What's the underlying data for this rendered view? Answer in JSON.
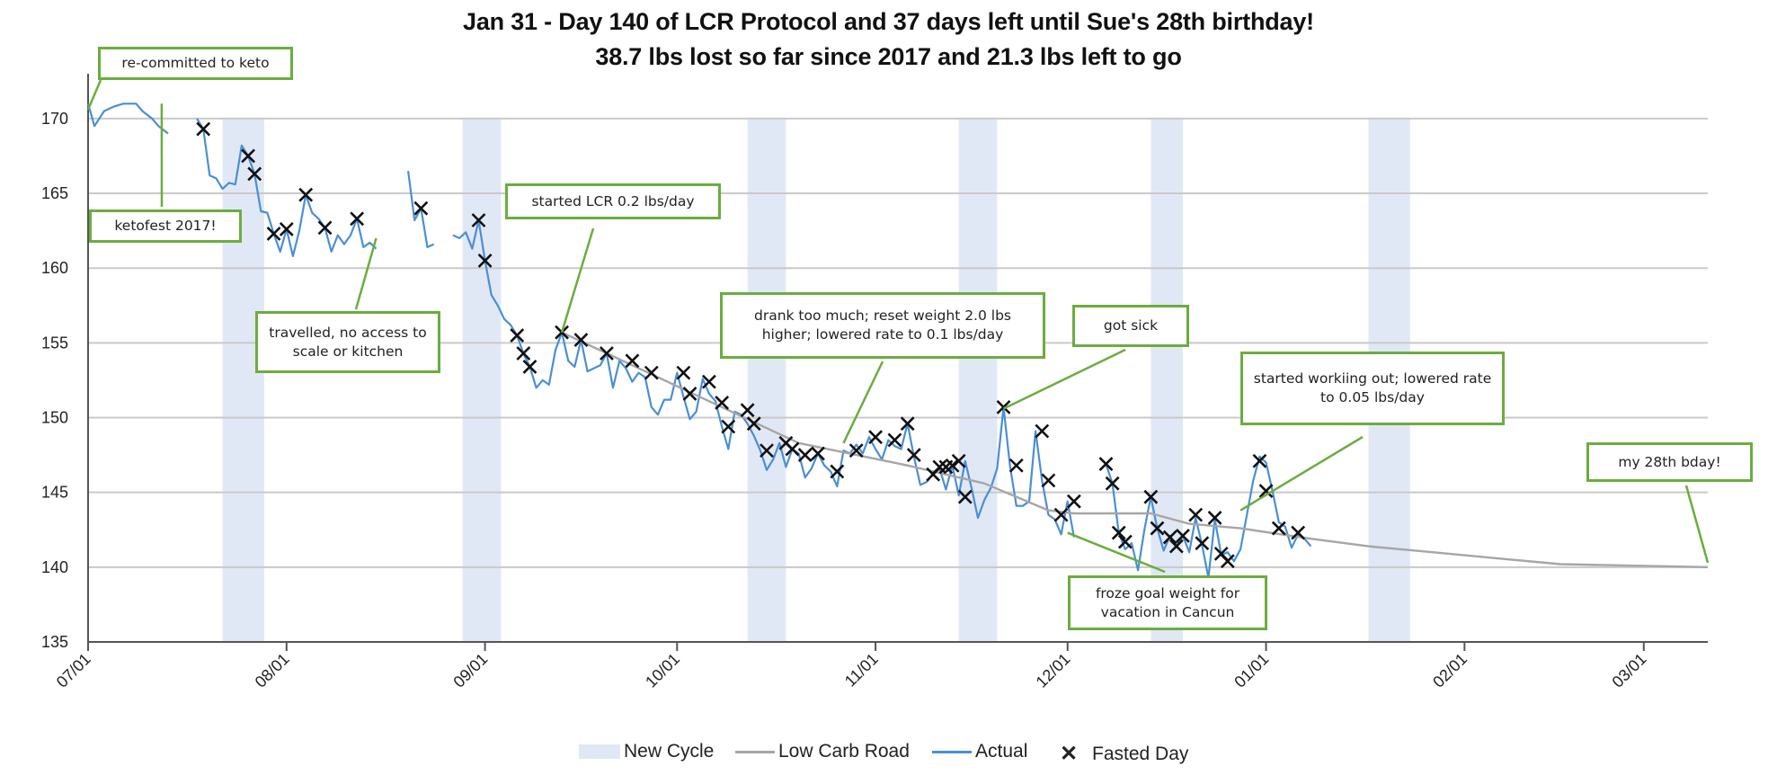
{
  "chart_data": {
    "type": "line",
    "title": "Jan 31 - Day 140 of LCR Protocol and 37 days left until Sue's 28th birthday!",
    "subtitle": "38.7 lbs lost so far since 2017 and 21.3 lbs left to go",
    "xlabel": "",
    "ylabel": "",
    "ylim": [
      135,
      173
    ],
    "y_ticks": [
      135,
      140,
      145,
      150,
      155,
      160,
      165,
      170
    ],
    "x_ticks": [
      "07/01",
      "08/01",
      "09/01",
      "10/01",
      "11/01",
      "12/01",
      "01/01",
      "02/01",
      "03/01"
    ],
    "x_tick_days": [
      0,
      31,
      62,
      92,
      123,
      153,
      184,
      215,
      243
    ],
    "x_range_days": [
      0,
      253
    ],
    "grid": "horizontal",
    "legend_position": "bottom",
    "new_cycle_bands": [
      [
        21,
        27.5
      ],
      [
        58.5,
        64.5
      ],
      [
        103,
        109
      ],
      [
        136,
        142
      ],
      [
        166,
        171
      ],
      [
        200,
        206.5
      ]
    ],
    "series": [
      {
        "name": "Actual",
        "color": "#4a8fd4",
        "segments": [
          [
            [
              0,
              171
            ],
            [
              1,
              169.5
            ],
            [
              2.5,
              170.5
            ],
            [
              4,
              170.8
            ],
            [
              5.5,
              171
            ],
            [
              7.5,
              171
            ],
            [
              8.5,
              170.5
            ],
            [
              10,
              170
            ],
            [
              11,
              169.5
            ],
            [
              12.5,
              169
            ]
          ],
          [
            [
              17,
              170
            ],
            [
              18,
              169.3
            ],
            [
              19,
              166.2
            ],
            [
              20,
              166
            ],
            [
              21,
              165.3
            ],
            [
              22,
              165.7
            ],
            [
              23,
              165.6
            ],
            [
              24,
              168.2
            ],
            [
              25,
              167.5
            ],
            [
              26,
              166.3
            ],
            [
              27,
              163.8
            ],
            [
              28,
              163.7
            ],
            [
              29,
              162.3
            ],
            [
              30,
              161.1
            ],
            [
              31,
              162.6
            ],
            [
              32,
              160.8
            ],
            [
              33,
              162.5
            ],
            [
              34,
              164.9
            ],
            [
              35,
              163.7
            ],
            [
              36,
              163.3
            ],
            [
              37,
              162.7
            ],
            [
              38,
              161.1
            ],
            [
              39,
              162.2
            ],
            [
              40,
              161.6
            ],
            [
              41,
              162.2
            ],
            [
              42,
              163.3
            ],
            [
              43,
              161.4
            ],
            [
              44,
              161.7
            ],
            [
              45,
              161.3
            ]
          ],
          [
            [
              50,
              166.5
            ],
            [
              51,
              163.2
            ],
            [
              52,
              164
            ],
            [
              53,
              161.4
            ],
            [
              54,
              161.6
            ]
          ],
          [
            [
              57,
              162.2
            ],
            [
              58,
              162
            ],
            [
              59,
              162.4
            ],
            [
              60,
              161.3
            ],
            [
              61,
              163.2
            ],
            [
              62,
              160.5
            ],
            [
              63,
              158.2
            ],
            [
              64,
              157.5
            ],
            [
              65,
              156.6
            ],
            [
              66,
              156.2
            ],
            [
              67,
              155.5
            ],
            [
              68,
              154.3
            ],
            [
              69,
              153.4
            ],
            [
              70,
              152
            ],
            [
              71,
              152.5
            ],
            [
              72,
              152.2
            ],
            [
              73,
              154.5
            ],
            [
              74,
              155.7
            ],
            [
              75,
              153.8
            ],
            [
              76,
              153.4
            ],
            [
              77,
              155.2
            ],
            [
              78,
              153.1
            ],
            [
              79,
              153.3
            ],
            [
              80,
              153.5
            ],
            [
              81,
              154.3
            ],
            [
              82,
              152
            ],
            [
              83,
              153.8
            ],
            [
              84,
              153.3
            ],
            [
              85,
              152.4
            ],
            [
              86,
              153
            ],
            [
              87,
              152.7
            ],
            [
              88,
              150.7
            ],
            [
              89,
              150.2
            ],
            [
              90,
              151.2
            ],
            [
              91,
              151.2
            ],
            [
              92,
              153
            ],
            [
              93,
              151.4
            ],
            [
              94,
              149.9
            ],
            [
              95,
              150.4
            ],
            [
              96,
              152.6
            ],
            [
              97,
              151.6
            ],
            [
              98,
              151.1
            ],
            [
              99,
              149.4
            ],
            [
              100,
              147.9
            ],
            [
              101,
              150.4
            ],
            [
              102,
              150.2
            ],
            [
              103,
              149.6
            ],
            [
              104,
              148.8
            ],
            [
              105,
              147.8
            ],
            [
              106,
              146.5
            ],
            [
              107,
              147.2
            ],
            [
              108,
              148.3
            ],
            [
              109,
              146.7
            ],
            [
              110,
              147.9
            ],
            [
              111,
              147.6
            ],
            [
              112,
              146
            ],
            [
              113,
              146.6
            ],
            [
              114,
              147.6
            ],
            [
              115,
              146.8
            ],
            [
              116,
              146.4
            ],
            [
              117,
              145.4
            ],
            [
              118,
              147.8
            ],
            [
              119,
              147.6
            ],
            [
              120,
              148.2
            ],
            [
              121,
              147.6
            ],
            [
              122,
              148.7
            ],
            [
              123,
              147.9
            ],
            [
              124,
              147.2
            ],
            [
              125,
              148.5
            ],
            [
              126,
              148.1
            ],
            [
              127,
              147.9
            ],
            [
              128,
              149.6
            ],
            [
              129,
              147.4
            ],
            [
              130,
              145.5
            ],
            [
              131,
              145.7
            ],
            [
              132,
              146.3
            ],
            [
              133,
              146.6
            ],
            [
              134,
              145.2
            ],
            [
              135,
              146.8
            ],
            [
              136,
              144.8
            ],
            [
              137,
              147.1
            ],
            [
              138,
              145.3
            ],
            [
              139,
              143.3
            ],
            [
              140,
              144.5
            ],
            [
              141,
              145.3
            ],
            [
              142,
              146.6
            ],
            [
              143,
              150.7
            ],
            [
              144,
              146.8
            ],
            [
              145,
              144.1
            ],
            [
              146,
              144.1
            ],
            [
              147,
              144.4
            ],
            [
              148,
              149.1
            ],
            [
              149,
              145.8
            ],
            [
              150,
              143.5
            ],
            [
              151,
              143.2
            ],
            [
              152,
              142.2
            ],
            [
              153,
              144.4
            ],
            [
              154,
              142
            ]
          ],
          [
            [
              159,
              146.9
            ],
            [
              160,
              145.6
            ],
            [
              161,
              142.3
            ],
            [
              162,
              141.2
            ],
            [
              163,
              141.6
            ],
            [
              164,
              139.8
            ],
            [
              165,
              142.5
            ],
            [
              166,
              144.7
            ],
            [
              167,
              142.6
            ],
            [
              168,
              141.1
            ],
            [
              169,
              142.1
            ],
            [
              170,
              141.4
            ],
            [
              171,
              142.1
            ],
            [
              172,
              141
            ],
            [
              173,
              143.3
            ],
            [
              174,
              141.5
            ],
            [
              175,
              139.3
            ],
            [
              176,
              143.2
            ],
            [
              177,
              140.8
            ],
            [
              178,
              141
            ],
            [
              179,
              140.4
            ],
            [
              180,
              141.2
            ],
            [
              181,
              143.5
            ],
            [
              182,
              145.8
            ],
            [
              183,
              147.4
            ],
            [
              184,
              147
            ],
            [
              185,
              145.1
            ],
            [
              186,
              143
            ],
            [
              187,
              142.7
            ],
            [
              188,
              141.3
            ],
            [
              189,
              142.2
            ],
            [
              190,
              141.9
            ],
            [
              191,
              141.4
            ]
          ]
        ]
      },
      {
        "name": "Low Carb Road",
        "color": "#a6a6a6",
        "segments": [
          [
            [
              74,
              155.7
            ],
            [
              100,
              150.5
            ],
            [
              111,
              148.3
            ],
            [
              128,
              146.8
            ],
            [
              140,
              145.6
            ],
            [
              150,
              143.8
            ],
            [
              154,
              143.6
            ],
            [
              166,
              143.6
            ],
            [
              172,
              142.9
            ],
            [
              180,
              142.6
            ],
            [
              191,
              141.9
            ],
            [
              200,
              141.4
            ],
            [
              210,
              141
            ],
            [
              220,
              140.6
            ],
            [
              230,
              140.2
            ],
            [
              253,
              140
            ]
          ]
        ]
      }
    ],
    "fasted_days": [
      [
        18,
        169.3
      ],
      [
        25,
        167.5
      ],
      [
        26,
        166.3
      ],
      [
        29,
        162.3
      ],
      [
        31,
        162.6
      ],
      [
        34,
        164.9
      ],
      [
        37,
        162.7
      ],
      [
        42,
        163.3
      ],
      [
        52,
        164
      ],
      [
        61,
        163.2
      ],
      [
        62,
        160.5
      ],
      [
        67,
        155.5
      ],
      [
        68,
        154.3
      ],
      [
        69,
        153.4
      ],
      [
        74,
        155.7
      ],
      [
        77,
        155.2
      ],
      [
        81,
        154.3
      ],
      [
        85,
        153.8
      ],
      [
        88,
        153
      ],
      [
        93,
        153
      ],
      [
        94,
        151.6
      ],
      [
        97,
        152.4
      ],
      [
        99,
        151
      ],
      [
        100,
        149.4
      ],
      [
        103,
        150.5
      ],
      [
        104,
        149.6
      ],
      [
        106,
        147.8
      ],
      [
        109,
        148.3
      ],
      [
        110,
        147.9
      ],
      [
        112,
        147.5
      ],
      [
        114,
        147.6
      ],
      [
        117,
        146.4
      ],
      [
        120,
        147.8
      ],
      [
        123,
        148.7
      ],
      [
        126,
        148.5
      ],
      [
        128,
        149.6
      ],
      [
        129,
        147.5
      ],
      [
        132,
        146.2
      ],
      [
        133,
        146.7
      ],
      [
        134,
        146.7
      ],
      [
        135,
        146.8
      ],
      [
        136,
        147.1
      ],
      [
        137,
        144.7
      ],
      [
        143,
        150.7
      ],
      [
        145,
        146.8
      ],
      [
        149,
        149.1
      ],
      [
        150,
        145.8
      ],
      [
        152,
        143.5
      ],
      [
        154,
        144.4
      ],
      [
        159,
        146.9
      ],
      [
        160,
        145.6
      ],
      [
        161,
        142.3
      ],
      [
        162,
        141.7
      ],
      [
        166,
        144.7
      ],
      [
        167,
        142.6
      ],
      [
        169,
        142
      ],
      [
        170,
        141.4
      ],
      [
        171,
        142.1
      ],
      [
        173,
        143.5
      ],
      [
        174,
        141.6
      ],
      [
        176,
        143.3
      ],
      [
        177,
        140.9
      ],
      [
        178,
        140.4
      ],
      [
        183,
        147.1
      ],
      [
        184,
        145.1
      ],
      [
        186,
        142.6
      ],
      [
        189,
        142.3
      ]
    ],
    "legend": [
      "New Cycle",
      "Low Carb Road",
      "Actual",
      "Fasted Day"
    ],
    "colors": {
      "new_cycle": "#e1e8f5",
      "actual": "#4a8fd4",
      "low_carb_road": "#a6a6a6",
      "fasted_day": "#111111",
      "annotation": "#6bad3f",
      "grid": "#c9c9c9"
    },
    "annotations": [
      {
        "text": "re-committed to keto",
        "point": [
          0,
          170.6
        ]
      },
      {
        "text": "ketofest 2017!",
        "point": [
          11.5,
          171
        ]
      },
      {
        "text": "travelled, no access to scale or kitchen",
        "point": [
          45,
          162
        ]
      },
      {
        "text": "started LCR 0.2 lbs/day",
        "point": [
          74,
          155.7
        ]
      },
      {
        "text": "drank too much; reset weight 2.0 lbs higher; lowered rate to 0.1 lbs/day",
        "point": [
          118,
          148.3
        ]
      },
      {
        "text": "got sick",
        "point": [
          143,
          150.6
        ]
      },
      {
        "text": "started workiing out; lowered rate to 0.05 lbs/day",
        "point": [
          180,
          143.8
        ]
      },
      {
        "text": "froze goal weight for vacation in Cancun",
        "point": [
          153,
          142.3
        ]
      },
      {
        "text": "my 28th bday!",
        "point": [
          253,
          140.3
        ]
      }
    ]
  }
}
